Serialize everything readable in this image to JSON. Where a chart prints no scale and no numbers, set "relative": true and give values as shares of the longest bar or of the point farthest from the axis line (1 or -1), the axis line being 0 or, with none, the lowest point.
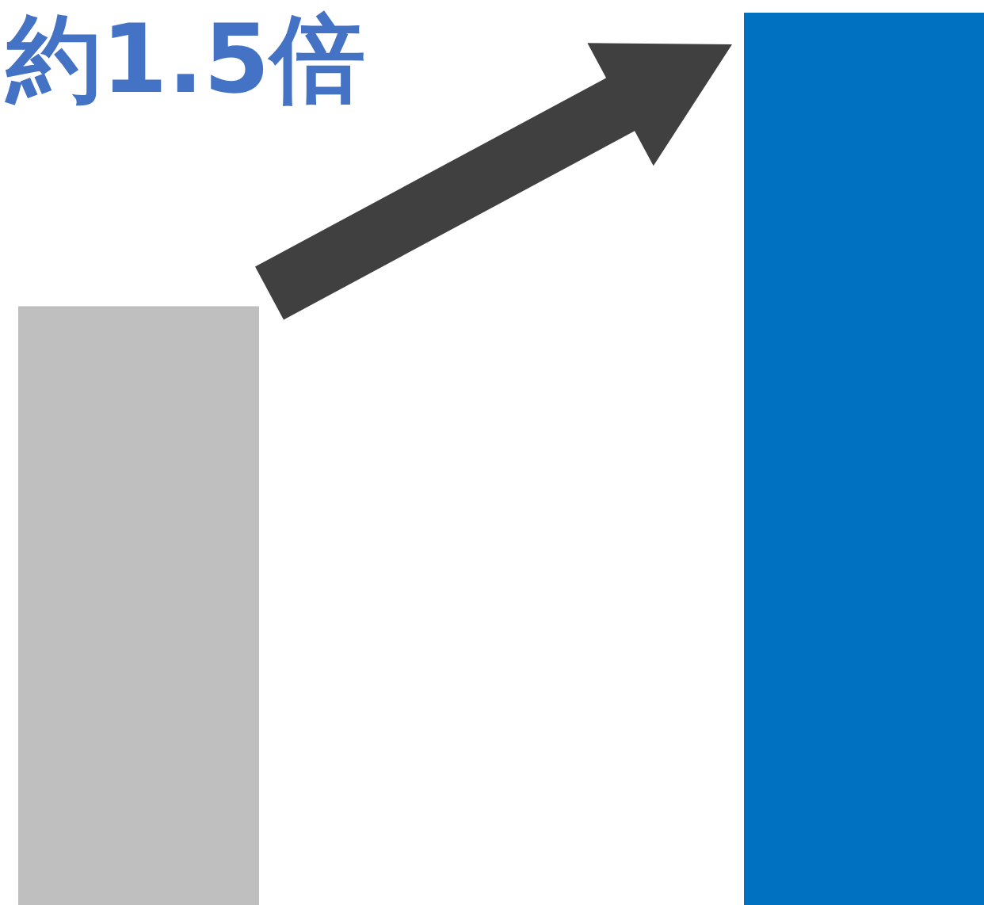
{
  "chart_data": {
    "type": "bar",
    "relative": true,
    "categories": [
      null,
      null
    ],
    "values": [
      0.671,
      1
    ],
    "colors": [
      "#bfbfbf",
      "#0070c0"
    ],
    "annotations": [
      "約1.5倍"
    ]
  }
}
